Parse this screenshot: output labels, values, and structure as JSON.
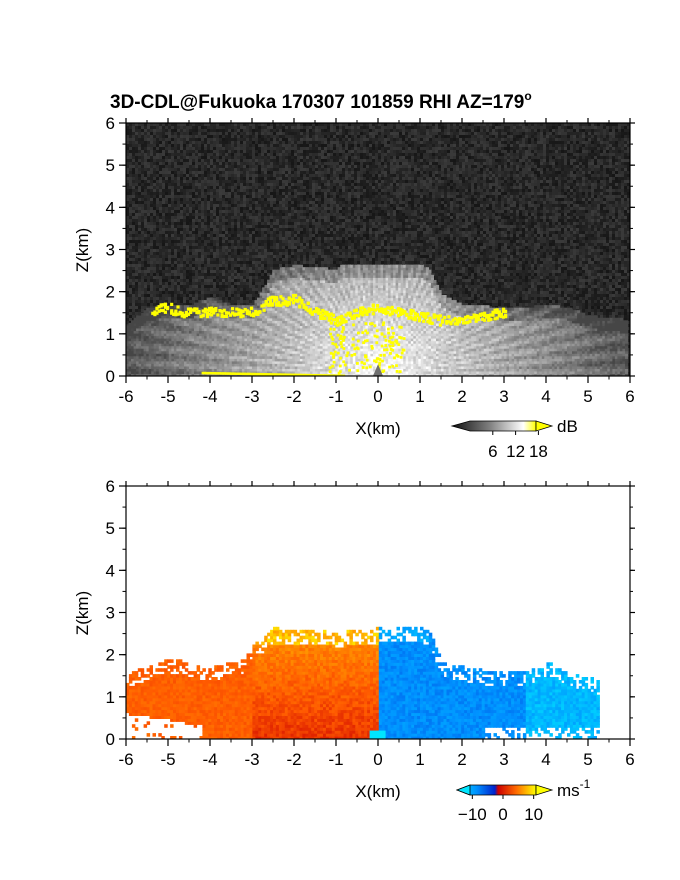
{
  "chart_data": [
    {
      "type": "heatmap",
      "panel": "reflectivity",
      "title_main": "3D-CDL@Fukuoka 170307 101859 RHI AZ=179",
      "title_sup": "o",
      "xlabel": "X(km)",
      "ylabel": "Z(km)",
      "xlim": [
        -6,
        6
      ],
      "ylim": [
        0,
        6
      ],
      "xticks": [
        -6,
        -5,
        -4,
        -3,
        -2,
        -1,
        0,
        1,
        2,
        3,
        4,
        5,
        6
      ],
      "yticks": [
        0,
        1,
        2,
        3,
        4,
        5,
        6
      ],
      "colorbar": {
        "unit": "dB",
        "ticks": [
          6,
          12,
          18
        ],
        "range": [
          0,
          20
        ]
      },
      "colormap": [
        "#202020",
        "#9a9a9a",
        "#ffffff",
        "#ffff00"
      ],
      "background_color": "#2a2a2a",
      "echo_top_profile": [
        [
          -6.0,
          1.2
        ],
        [
          -5.5,
          1.6
        ],
        [
          -5.0,
          1.65
        ],
        [
          -4.5,
          1.65
        ],
        [
          -4.0,
          1.85
        ],
        [
          -3.5,
          1.65
        ],
        [
          -3.0,
          1.65
        ],
        [
          -2.5,
          2.5
        ],
        [
          -2.0,
          2.6
        ],
        [
          -1.0,
          2.5
        ],
        [
          -0.9,
          2.6
        ],
        [
          0.0,
          2.6
        ],
        [
          1.0,
          2.6
        ],
        [
          1.2,
          2.5
        ],
        [
          1.5,
          1.9
        ],
        [
          2.0,
          1.65
        ],
        [
          3.0,
          1.6
        ],
        [
          3.5,
          1.6
        ],
        [
          4.0,
          1.65
        ],
        [
          4.5,
          1.6
        ],
        [
          5.0,
          1.4
        ],
        [
          6.0,
          1.3
        ]
      ],
      "high_reflectivity_band": [
        [
          -5.4,
          1.55
        ],
        [
          -5.0,
          1.6
        ],
        [
          -4.7,
          1.5
        ],
        [
          -3.0,
          1.5
        ],
        [
          -2.6,
          1.75
        ],
        [
          -2.0,
          1.8
        ],
        [
          -1.5,
          1.5
        ],
        [
          -1.0,
          1.3
        ],
        [
          -0.5,
          1.5
        ],
        [
          0.0,
          1.6
        ],
        [
          0.5,
          1.5
        ],
        [
          1.0,
          1.4
        ],
        [
          1.5,
          1.3
        ],
        [
          2.0,
          1.3
        ],
        [
          2.5,
          1.4
        ],
        [
          3.0,
          1.5
        ]
      ]
    },
    {
      "type": "heatmap",
      "panel": "doppler_velocity",
      "xlabel": "X(km)",
      "ylabel": "Z(km)",
      "xlim": [
        -6,
        6
      ],
      "ylim": [
        0,
        6
      ],
      "xticks": [
        -6,
        -5,
        -4,
        -3,
        -2,
        -1,
        0,
        1,
        2,
        3,
        4,
        5,
        6
      ],
      "yticks": [
        0,
        1,
        2,
        3,
        4,
        5,
        6
      ],
      "colorbar": {
        "unit": "ms",
        "unit_sup": "-1",
        "ticks": [
          -10,
          0,
          10
        ],
        "range": [
          -15,
          15
        ]
      },
      "colormap": [
        "#00e5ff",
        "#0070ff",
        "#0033dd",
        "#cc0000",
        "#ff4500",
        "#ff9900",
        "#ffff00"
      ],
      "background_color": "#ffffff",
      "echo_top_profile": [
        [
          -6.0,
          1.5
        ],
        [
          -5.0,
          1.9
        ],
        [
          -4.0,
          1.7
        ],
        [
          -3.3,
          1.8
        ],
        [
          -3.0,
          2.2
        ],
        [
          -2.5,
          2.6
        ],
        [
          -1.0,
          2.5
        ],
        [
          0.0,
          2.6
        ],
        [
          1.0,
          2.6
        ],
        [
          1.2,
          2.5
        ],
        [
          1.5,
          1.8
        ],
        [
          2.5,
          1.6
        ],
        [
          3.5,
          1.55
        ],
        [
          4.0,
          1.85
        ],
        [
          4.5,
          1.6
        ],
        [
          5.2,
          1.4
        ]
      ]
    }
  ]
}
